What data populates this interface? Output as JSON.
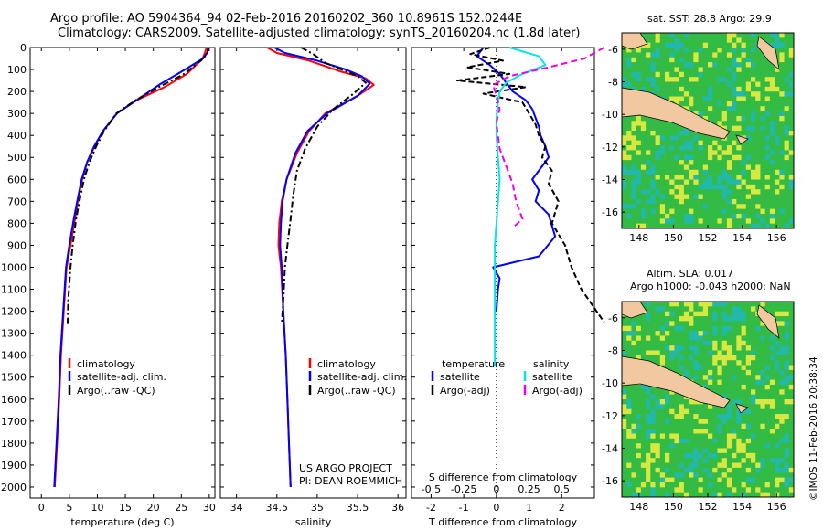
{
  "title": {
    "line1": "Argo profile: AO 5904364_94 02-Feb-2016 20160202_360 10.8961S 152.0244E",
    "line2": "Climatology: CARS2009. Satellite-adjusted climatology: synTS_20160204.nc (1.8d later)"
  },
  "colors": {
    "clim": "#ff0000",
    "sat": "#0000ff",
    "argo": "#000000",
    "sal_sat": "#00e5ee",
    "sal_argo": "#ee00ee",
    "land": "#f2c8a0",
    "sea_green": "#33bb44",
    "sea_yellow": "#d8e840",
    "sea_cyan": "#22b8aa"
  },
  "legends": {
    "temp": [
      "climatology",
      "satellite-adj. clim.",
      "Argo(..raw -QC)"
    ],
    "sal": [
      "climatology",
      "satellite-adj. clim.",
      "Argo(..raw -QC)"
    ],
    "diff_t_header": "temperature",
    "diff_s_header": "salinity",
    "diff_t": [
      "satellite",
      "Argo(-adj)"
    ],
    "diff_s": [
      "satellite",
      "Argo(-adj)"
    ]
  },
  "project": {
    "line1": "US ARGO PROJECT",
    "line2": "PI: DEAN ROEMMICH"
  },
  "maps": {
    "top_title": "sat. SST: 28.8 Argo: 29.9",
    "bottom_title1": "Altim. SLA: 0.017",
    "bottom_title2": "Argo h1000: -0.043 h2000: NaN",
    "lon_ticks": [
      "148",
      "150",
      "152",
      "154",
      "156"
    ],
    "lat_ticks": [
      "-6",
      "-8",
      "-10",
      "-12",
      "-14",
      "-16"
    ]
  },
  "credit": "©IMOS 11-Feb-2016 20:38:34",
  "chart_data": [
    {
      "type": "line",
      "name": "temperature",
      "xlabel": "temperature (deg C)",
      "ylabel": "",
      "xlim": [
        -2,
        31
      ],
      "ylim": [
        0,
        2050
      ],
      "xticks": [
        0,
        5,
        10,
        15,
        20,
        25,
        30
      ],
      "yticks": [
        0,
        100,
        200,
        300,
        400,
        500,
        600,
        700,
        800,
        900,
        1000,
        1100,
        1200,
        1300,
        1400,
        1500,
        1600,
        1700,
        1800,
        1900,
        2000
      ],
      "series": [
        {
          "name": "climatology",
          "color": "#ff0000",
          "x": [
            29.5,
            29.2,
            28.8,
            26,
            22,
            17,
            13.5,
            11,
            9.5,
            8.2,
            7.3,
            6.5,
            6,
            5.2,
            4.5,
            4,
            3.5,
            3.2,
            2.8,
            2.4
          ],
          "y": [
            0,
            25,
            50,
            120,
            180,
            240,
            300,
            380,
            450,
            520,
            600,
            700,
            780,
            900,
            1000,
            1200,
            1400,
            1600,
            1800,
            2000
          ]
        },
        {
          "name": "satellite-adj. clim.",
          "color": "#0000ff",
          "x": [
            30,
            29.6,
            28.9,
            25,
            21,
            17,
            13.5,
            11,
            9.4,
            8.2,
            7.2,
            6.4,
            5.8,
            5,
            4.4,
            3.9,
            3.4,
            3.1,
            2.7,
            2.3
          ],
          "y": [
            0,
            25,
            50,
            110,
            170,
            240,
            300,
            380,
            450,
            520,
            600,
            700,
            780,
            900,
            1000,
            1200,
            1400,
            1600,
            1800,
            2000
          ]
        },
        {
          "name": "Argo(..raw -QC)",
          "color": "#000000",
          "x": [
            29.8,
            29.6,
            28.5,
            25.5,
            21,
            16.8,
            13.4,
            11.2,
            9.8,
            8.6,
            7.6,
            6.8,
            6.2,
            5.6,
            5.2,
            4.8,
            4.7
          ],
          "y": [
            0,
            30,
            60,
            120,
            180,
            240,
            300,
            380,
            450,
            520,
            600,
            700,
            780,
            900,
            1000,
            1150,
            1260
          ]
        }
      ]
    },
    {
      "type": "line",
      "name": "salinity",
      "xlabel": "salinity",
      "xlim": [
        33.8,
        36.1
      ],
      "ylim": [
        0,
        2050
      ],
      "xticks": [
        34,
        34.5,
        35,
        35.5,
        36
      ],
      "xticklabels": [
        "34",
        "34.5",
        "35",
        "35.5",
        "36"
      ],
      "series": [
        {
          "name": "climatology",
          "color": "#ff0000",
          "x": [
            34.38,
            34.5,
            34.9,
            35.3,
            35.6,
            35.7,
            35.5,
            35.1,
            34.9,
            34.75,
            34.62,
            34.56,
            34.53,
            34.52,
            34.55,
            34.58,
            34.61,
            34.63,
            34.65,
            34.67
          ],
          "y": [
            0,
            25,
            60,
            110,
            140,
            170,
            220,
            300,
            380,
            480,
            600,
            700,
            800,
            900,
            1000,
            1200,
            1400,
            1600,
            1800,
            2000
          ]
        },
        {
          "name": "satellite-adj. clim.",
          "color": "#0000ff",
          "x": [
            34.47,
            34.6,
            35.0,
            35.35,
            35.55,
            35.65,
            35.5,
            35.12,
            34.88,
            34.73,
            34.62,
            34.57,
            34.55,
            34.54,
            34.56,
            34.58,
            34.61,
            34.63,
            34.65,
            34.67
          ],
          "y": [
            0,
            25,
            60,
            100,
            130,
            165,
            220,
            300,
            380,
            480,
            600,
            700,
            800,
            900,
            1000,
            1200,
            1400,
            1600,
            1800,
            2000
          ]
        },
        {
          "name": "Argo(..raw -QC)",
          "color": "#000000",
          "x": [
            34.8,
            34.95,
            35.1,
            35.3,
            35.5,
            35.6,
            35.45,
            35.2,
            35.0,
            34.85,
            34.75,
            34.7,
            34.67,
            34.63,
            34.6,
            34.58,
            34.56
          ],
          "y": [
            0,
            30,
            70,
            100,
            130,
            160,
            210,
            280,
            360,
            460,
            560,
            680,
            780,
            900,
            1000,
            1150,
            1260
          ]
        }
      ]
    },
    {
      "type": "line",
      "name": "difference",
      "xlabel": "T difference from climatology",
      "xlabel_top": "S difference from climatology",
      "xlim": [
        -2.6,
        3.0
      ],
      "ylim": [
        0,
        2050
      ],
      "xticks": [
        -2,
        -1,
        0,
        1,
        2
      ],
      "xticklabels": [
        "-2",
        "-1",
        "0",
        "1",
        "2"
      ],
      "sticks_pos": [
        -2,
        -1,
        0,
        1,
        2
      ],
      "sticklabels": [
        "-0.5",
        "-0.25",
        "0",
        "0.25",
        "0.5"
      ],
      "series": [
        {
          "name": "temperature satellite",
          "color": "#0000ff",
          "dash": "",
          "x": [
            -0.4,
            -0.6,
            -0.2,
            0.1,
            0.3,
            0.5,
            0.9,
            1.1,
            1.2,
            1.3,
            1.35,
            1.5,
            1.6,
            1.4,
            1.1,
            1.3,
            1.2,
            1.6,
            1.8,
            1.3,
            -0.1,
            0.1,
            0.05,
            0.0
          ],
          "y": [
            0,
            40,
            80,
            120,
            160,
            200,
            240,
            280,
            320,
            360,
            400,
            450,
            500,
            540,
            600,
            650,
            700,
            760,
            860,
            950,
            1000,
            1050,
            1100,
            1200
          ]
        },
        {
          "name": "temperature Argo(-adj)",
          "color": "#000000",
          "dash": "6,3",
          "x": [
            -0.2,
            -0.8,
            0.2,
            -0.9,
            0.4,
            -1.2,
            0.9,
            -0.4,
            0.8,
            1.0,
            1.2,
            1.3,
            1.5,
            1.4,
            1.7,
            1.6,
            1.9,
            1.7,
            2.1,
            2.3,
            2.6,
            3.3
          ],
          "y": [
            0,
            30,
            60,
            90,
            120,
            150,
            180,
            210,
            250,
            300,
            350,
            400,
            450,
            500,
            560,
            620,
            700,
            800,
            900,
            1000,
            1100,
            1250
          ]
        },
        {
          "name": "salinity satellite",
          "color": "#00e5ee",
          "dash": "",
          "x": [
            0.4,
            1.3,
            1.5,
            0.8,
            0.3,
            0.1,
            0.05,
            0.0,
            0.0,
            0.05,
            0.1,
            0.05,
            0.0,
            -0.05,
            -0.05,
            -0.05,
            -0.05,
            -0.05
          ],
          "y": [
            0,
            40,
            80,
            120,
            160,
            200,
            250,
            320,
            400,
            500,
            600,
            700,
            800,
            900,
            1000,
            1100,
            1300,
            1450
          ]
        },
        {
          "name": "salinity Argo(-adj)",
          "color": "#ee00ee",
          "dash": "7,4",
          "x": [
            3.3,
            2.7,
            1.6,
            0.4,
            -0.1,
            0.0,
            0.1,
            0.0,
            0.05,
            0.1,
            0.3,
            0.5,
            0.6,
            0.8,
            0.5
          ],
          "y": [
            0,
            50,
            90,
            130,
            170,
            220,
            280,
            340,
            400,
            460,
            540,
            620,
            700,
            780,
            820
          ]
        }
      ]
    }
  ]
}
